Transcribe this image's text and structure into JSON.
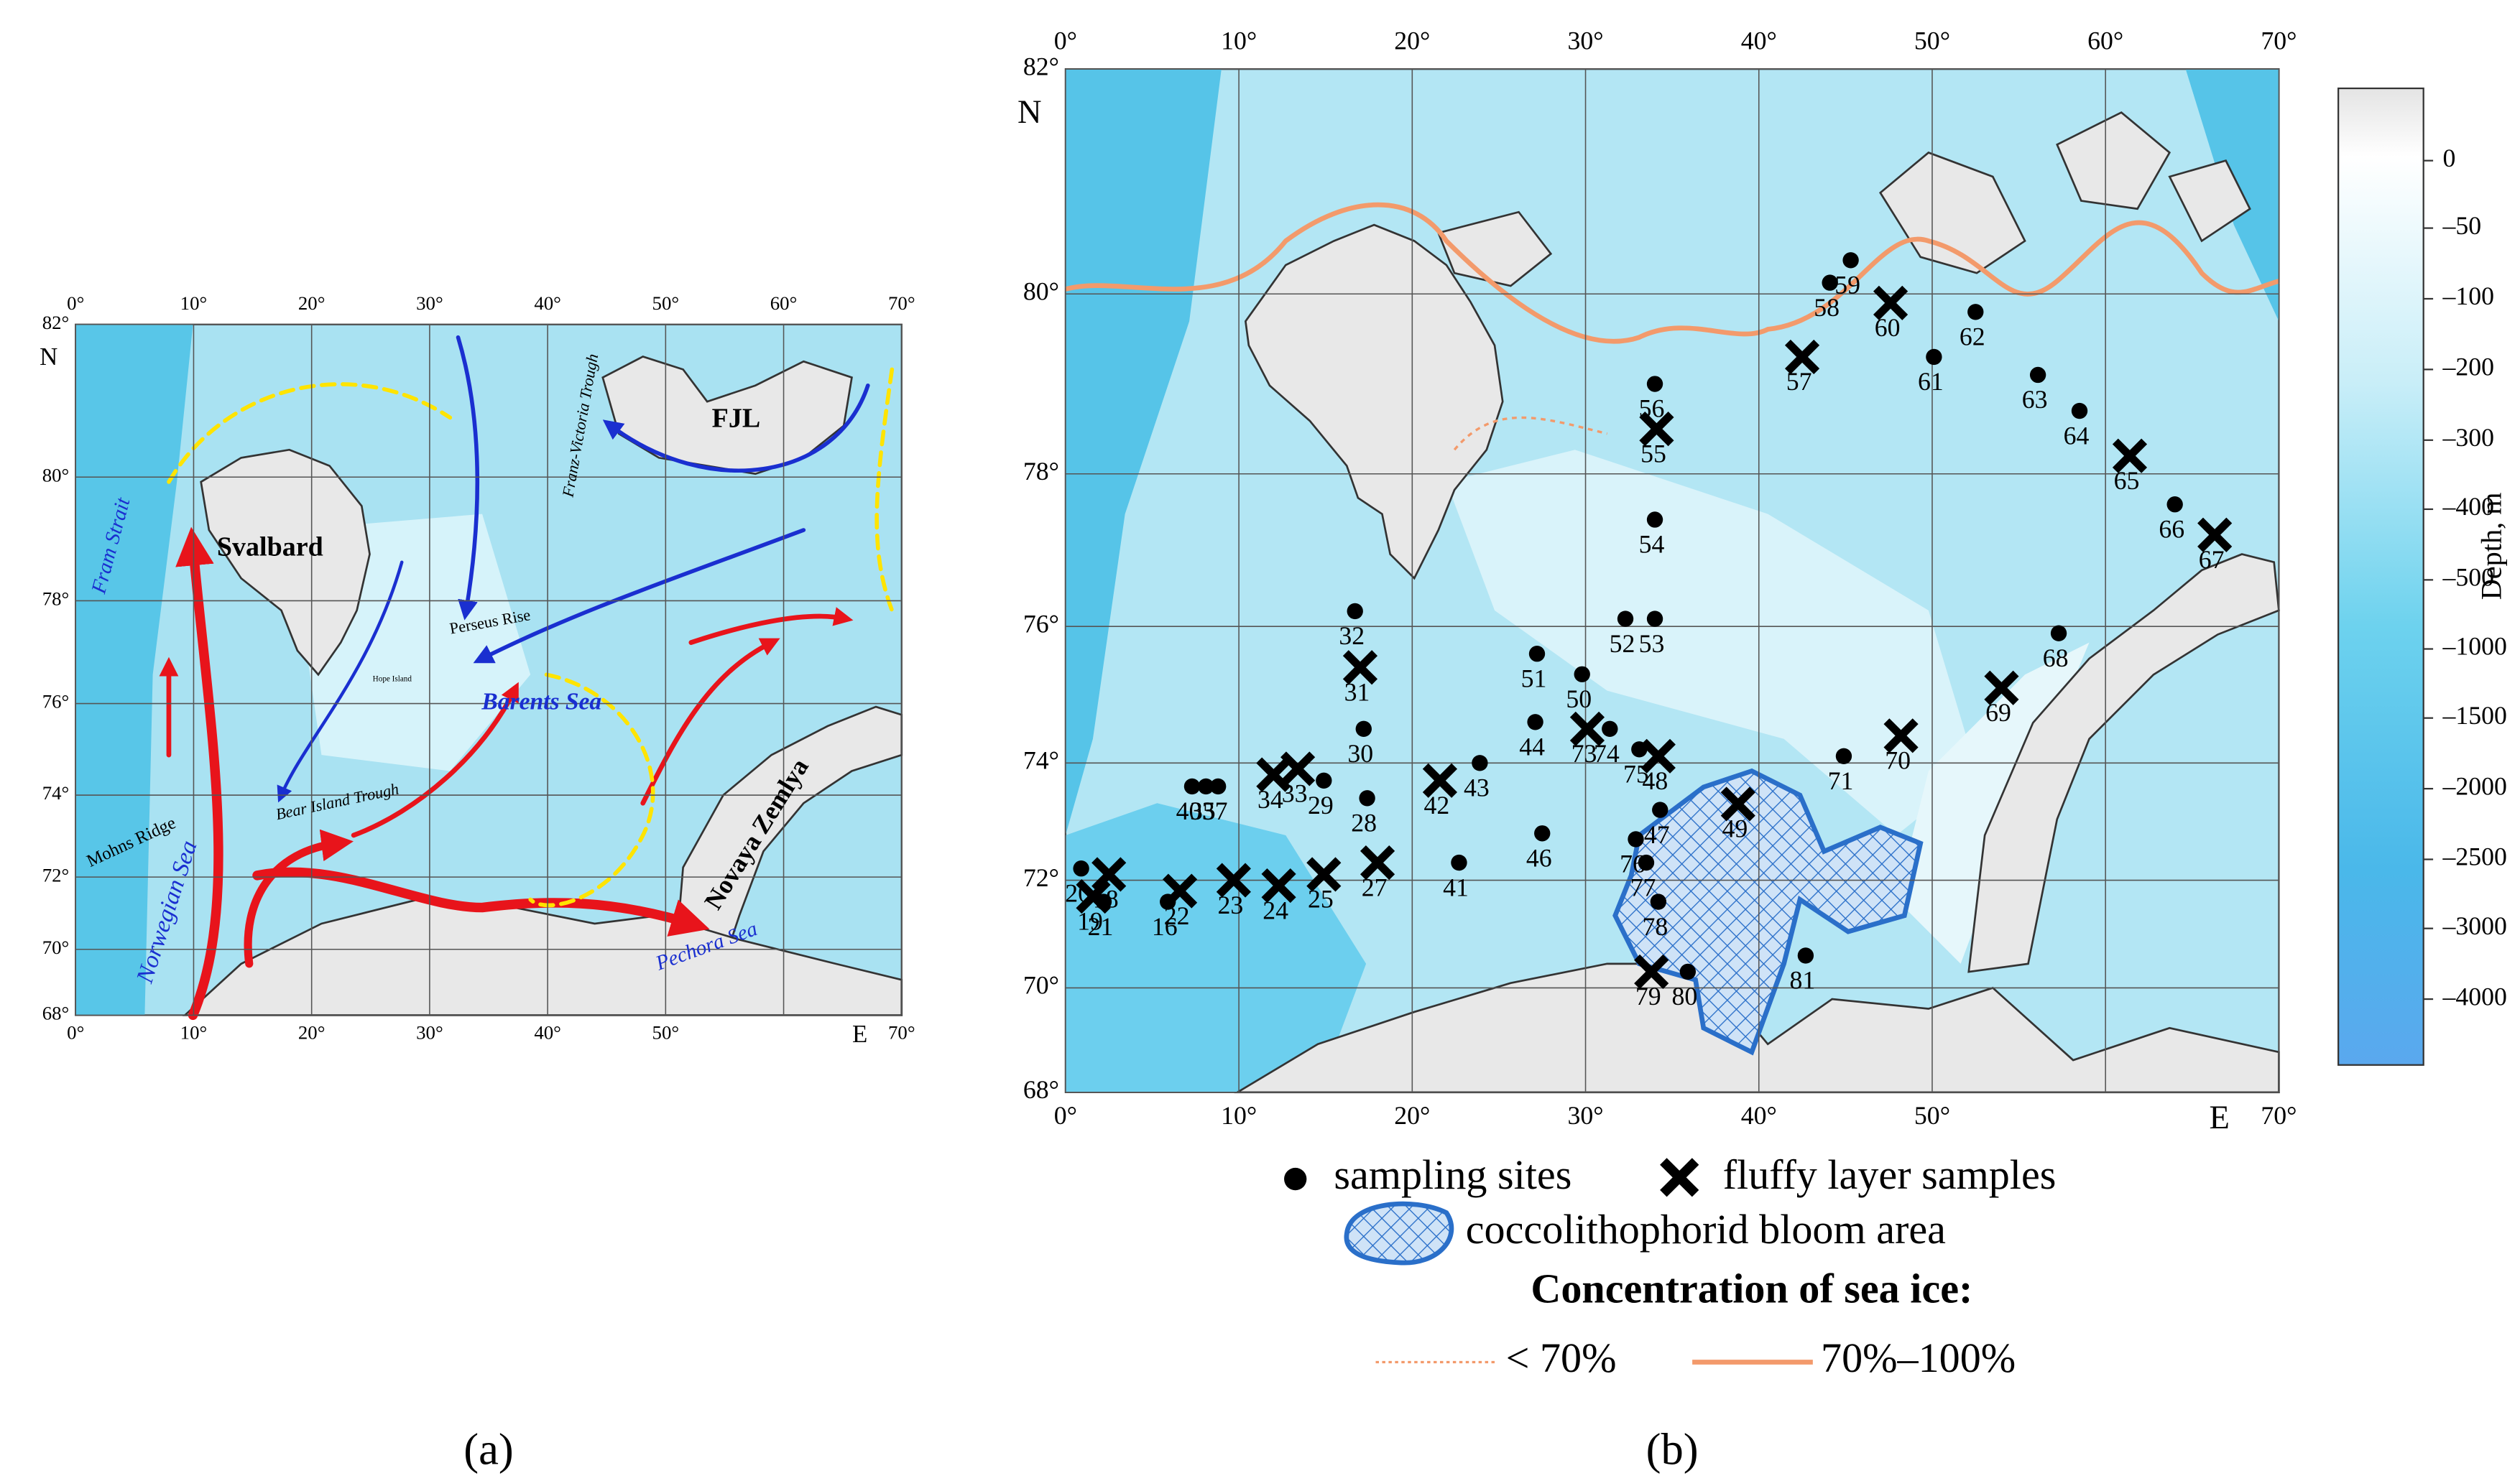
{
  "panel_a": {
    "caption": "(a)",
    "north": "N",
    "east": "E",
    "lon_ticks": [
      {
        "value": 0,
        "label": "0°"
      },
      {
        "value": 10,
        "label": "10°"
      },
      {
        "value": 20,
        "label": "20°"
      },
      {
        "value": 30,
        "label": "30°"
      },
      {
        "value": 40,
        "label": "40°"
      },
      {
        "value": 50,
        "label": "50°"
      },
      {
        "value": 60,
        "label": "60°"
      },
      {
        "value": 70,
        "label": "70°"
      }
    ],
    "lat_ticks": [
      {
        "value": 82,
        "label": "82°"
      },
      {
        "value": 80,
        "label": "80°"
      },
      {
        "value": 78,
        "label": "78°"
      },
      {
        "value": 76,
        "label": "76°"
      },
      {
        "value": 74,
        "label": "74°"
      },
      {
        "value": 72,
        "label": "72°"
      },
      {
        "value": 70,
        "label": "70°"
      },
      {
        "value": 68,
        "label": "68°"
      }
    ],
    "place_names": [
      "Fram Strait",
      "Svalbard",
      "FJL",
      "Franz-Victoria Trough",
      "Perseus Rise",
      "Hope Island",
      "Barents Sea",
      "Bear Island Trough",
      "Mohns Ridge",
      "Norwegian Sea",
      "Novaya Zemlya",
      "Pechora Sea"
    ]
  },
  "panel_b": {
    "caption": "(b)",
    "north": "N",
    "east": "E",
    "lon_ticks": [
      {
        "value": 0,
        "label": "0°"
      },
      {
        "value": 10,
        "label": "10°"
      },
      {
        "value": 20,
        "label": "20°"
      },
      {
        "value": 30,
        "label": "30°"
      },
      {
        "value": 40,
        "label": "40°"
      },
      {
        "value": 50,
        "label": "50°"
      },
      {
        "value": 60,
        "label": "60°"
      },
      {
        "value": 70,
        "label": "70°"
      }
    ],
    "lat_ticks": [
      {
        "value": 82,
        "label": "82°"
      },
      {
        "value": 80,
        "label": "80°"
      },
      {
        "value": 78,
        "label": "78°"
      },
      {
        "value": 76,
        "label": "76°"
      },
      {
        "value": 74,
        "label": "74°"
      },
      {
        "value": 72,
        "label": "72°"
      },
      {
        "value": 70,
        "label": "70°"
      },
      {
        "value": 68,
        "label": "68°"
      }
    ],
    "stations": [
      {
        "label": "20",
        "type": "site",
        "lon": 0.9,
        "lat": 72.2
      },
      {
        "label": "18",
        "type": "fluffy",
        "lon": 2.5,
        "lat": 72.1
      },
      {
        "label": "19",
        "type": "fluffy",
        "lon": 1.6,
        "lat": 71.7
      },
      {
        "label": "21",
        "type": "site",
        "lon": 2.2,
        "lat": 71.6
      },
      {
        "label": "16",
        "type": "site",
        "lon": 5.9,
        "lat": 71.6
      },
      {
        "label": "22",
        "type": "fluffy",
        "lon": 6.6,
        "lat": 71.8
      },
      {
        "label": "23",
        "type": "fluffy",
        "lon": 9.7,
        "lat": 72.0
      },
      {
        "label": "24",
        "type": "fluffy",
        "lon": 12.3,
        "lat": 71.9
      },
      {
        "label": "25",
        "type": "fluffy",
        "lon": 14.9,
        "lat": 72.1
      },
      {
        "label": "27",
        "type": "fluffy",
        "lon": 18.0,
        "lat": 72.3
      },
      {
        "label": "41",
        "type": "site",
        "lon": 22.7,
        "lat": 72.3
      },
      {
        "label": "40",
        "type": "site",
        "lon": 7.3,
        "lat": 73.6
      },
      {
        "label": "35",
        "type": "site",
        "lon": 8.1,
        "lat": 73.6
      },
      {
        "label": "37",
        "type": "site",
        "lon": 8.8,
        "lat": 73.6
      },
      {
        "label": "34",
        "type": "fluffy",
        "lon": 12.0,
        "lat": 73.8
      },
      {
        "label": "33",
        "type": "fluffy",
        "lon": 13.4,
        "lat": 73.9
      },
      {
        "label": "29",
        "type": "site",
        "lon": 14.9,
        "lat": 73.7
      },
      {
        "label": "28",
        "type": "site",
        "lon": 17.4,
        "lat": 73.4
      },
      {
        "label": "42",
        "type": "fluffy",
        "lon": 21.6,
        "lat": 73.7
      },
      {
        "label": "43",
        "type": "site",
        "lon": 23.9,
        "lat": 74.0
      },
      {
        "label": "30",
        "type": "site",
        "lon": 17.2,
        "lat": 74.5
      },
      {
        "label": "31",
        "type": "fluffy",
        "lon": 17.0,
        "lat": 75.4
      },
      {
        "label": "32",
        "type": "site",
        "lon": 16.7,
        "lat": 76.2
      },
      {
        "label": "51",
        "type": "site",
        "lon": 27.2,
        "lat": 75.6
      },
      {
        "label": "52",
        "type": "site",
        "lon": 32.3,
        "lat": 76.1
      },
      {
        "label": "53",
        "type": "site",
        "lon": 34.0,
        "lat": 76.1
      },
      {
        "label": "50",
        "type": "site",
        "lon": 29.8,
        "lat": 75.3
      },
      {
        "label": "44",
        "type": "site",
        "lon": 27.1,
        "lat": 74.6
      },
      {
        "label": "73",
        "type": "fluffy",
        "lon": 30.1,
        "lat": 74.5
      },
      {
        "label": "74",
        "type": "site",
        "lon": 31.4,
        "lat": 74.5
      },
      {
        "label": "75",
        "type": "site",
        "lon": 33.1,
        "lat": 74.2
      },
      {
        "label": "48",
        "type": "fluffy",
        "lon": 34.2,
        "lat": 74.1
      },
      {
        "label": "46",
        "type": "site",
        "lon": 27.5,
        "lat": 72.8
      },
      {
        "label": "47",
        "type": "site",
        "lon": 34.3,
        "lat": 73.2
      },
      {
        "label": "49",
        "type": "fluffy",
        "lon": 38.8,
        "lat": 73.3
      },
      {
        "label": "76",
        "type": "site",
        "lon": 32.9,
        "lat": 72.7
      },
      {
        "label": "77",
        "type": "site",
        "lon": 33.5,
        "lat": 72.3
      },
      {
        "label": "78",
        "type": "site",
        "lon": 34.2,
        "lat": 71.6
      },
      {
        "label": "79",
        "type": "fluffy",
        "lon": 33.8,
        "lat": 70.3
      },
      {
        "label": "80",
        "type": "site",
        "lon": 35.9,
        "lat": 70.3
      },
      {
        "label": "81",
        "type": "site",
        "lon": 42.7,
        "lat": 70.6
      },
      {
        "label": "71",
        "type": "site",
        "lon": 44.9,
        "lat": 74.1
      },
      {
        "label": "70",
        "type": "fluffy",
        "lon": 48.2,
        "lat": 74.4
      },
      {
        "label": "69",
        "type": "fluffy",
        "lon": 54.0,
        "lat": 75.1
      },
      {
        "label": "68",
        "type": "site",
        "lon": 57.3,
        "lat": 75.9
      },
      {
        "label": "67",
        "type": "fluffy",
        "lon": 66.3,
        "lat": 77.2
      },
      {
        "label": "66",
        "type": "site",
        "lon": 64.0,
        "lat": 77.6
      },
      {
        "label": "65",
        "type": "fluffy",
        "lon": 61.4,
        "lat": 78.2
      },
      {
        "label": "64",
        "type": "site",
        "lon": 58.5,
        "lat": 78.7
      },
      {
        "label": "63",
        "type": "site",
        "lon": 56.1,
        "lat": 79.1
      },
      {
        "label": "62",
        "type": "site",
        "lon": 52.5,
        "lat": 79.8
      },
      {
        "label": "61",
        "type": "site",
        "lon": 50.1,
        "lat": 79.3
      },
      {
        "label": "60",
        "type": "fluffy",
        "lon": 47.6,
        "lat": 79.9
      },
      {
        "label": "59",
        "type": "site",
        "lon": 45.3,
        "lat": 80.3
      },
      {
        "label": "58",
        "type": "site",
        "lon": 44.1,
        "lat": 80.1
      },
      {
        "label": "57",
        "type": "fluffy",
        "lon": 42.5,
        "lat": 79.3
      },
      {
        "label": "56",
        "type": "site",
        "lon": 34.0,
        "lat": 79.0
      },
      {
        "label": "55",
        "type": "fluffy",
        "lon": 34.1,
        "lat": 78.5
      },
      {
        "label": "54",
        "type": "site",
        "lon": 34.0,
        "lat": 77.4
      }
    ],
    "colorbar": {
      "title": "Depth, m",
      "labels": [
        "0",
        "–50",
        "–100",
        "–200",
        "–300",
        "–400",
        "–500",
        "–1000",
        "–1500",
        "–2000",
        "–2500",
        "–3000",
        "–4000"
      ]
    },
    "legend": {
      "sites": "sampling sites",
      "fluffy": "fluffy layer samples",
      "bloom": "coccolithophorid bloom area",
      "ice_title": "Concentration of sea ice:",
      "ice_low": "< 70%",
      "ice_high": "70%–100%"
    }
  }
}
